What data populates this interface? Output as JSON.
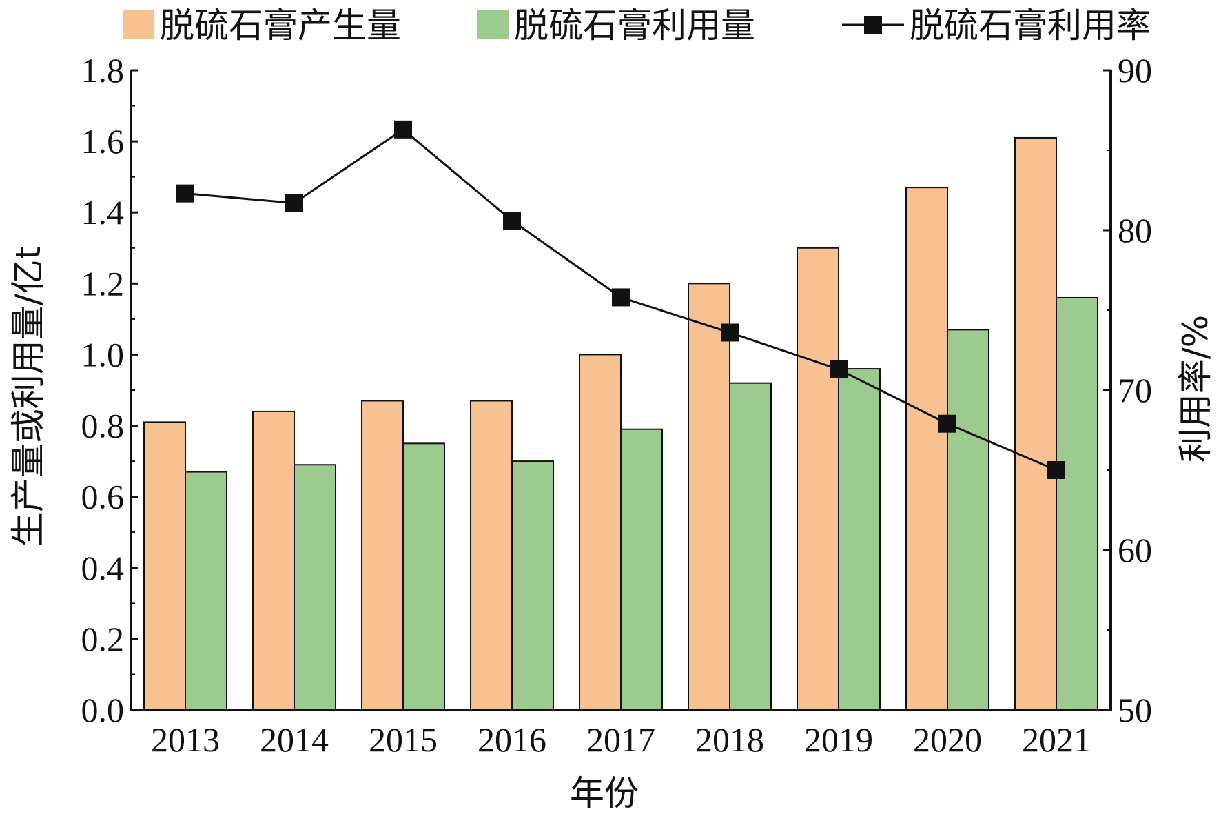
{
  "chart_data": {
    "type": "bar",
    "categories": [
      "2013",
      "2014",
      "2015",
      "2016",
      "2017",
      "2018",
      "2019",
      "2020",
      "2021"
    ],
    "series": [
      {
        "name": "脱硫石膏产生量",
        "type": "bar",
        "axis": "left",
        "color": "#f8c192",
        "values": [
          0.81,
          0.84,
          0.87,
          0.87,
          1.0,
          1.2,
          1.3,
          1.47,
          1.61
        ]
      },
      {
        "name": "脱硫石膏利用量",
        "type": "bar",
        "axis": "left",
        "color": "#9dcb8f",
        "values": [
          0.67,
          0.69,
          0.75,
          0.7,
          0.79,
          0.92,
          0.96,
          1.07,
          1.16
        ]
      },
      {
        "name": "脱硫石膏利用率",
        "type": "line",
        "axis": "right",
        "color": "#111111",
        "marker": "square",
        "values": [
          82.3,
          81.7,
          86.3,
          80.6,
          75.8,
          73.6,
          71.3,
          67.9,
          65.0
        ]
      }
    ],
    "xlabel": "年份",
    "ylabel": "生产量或利用量/亿t",
    "y2label": "利用率/%",
    "ylim": [
      0,
      1.8
    ],
    "y2lim": [
      50,
      90
    ],
    "yticks": [
      "0.0",
      "0.2",
      "0.4",
      "0.6",
      "0.8",
      "1.0",
      "1.2",
      "1.4",
      "1.6",
      "1.8"
    ],
    "y2ticks": [
      "50",
      "60",
      "70",
      "80",
      "90"
    ],
    "grid": false,
    "legend_position": "top"
  }
}
